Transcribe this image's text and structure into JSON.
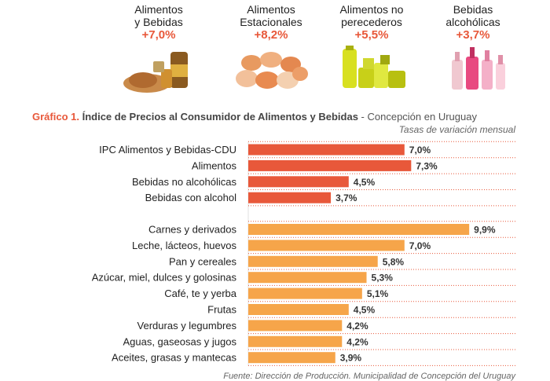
{
  "categories_header": [
    {
      "name": "Alimentos\ny Bebidas",
      "pct": "+7,0%",
      "icon": "food-basket-icon"
    },
    {
      "name": "Alimentos\nEstacionales",
      "pct": "+8,2%",
      "icon": "seasonal-produce-icon"
    },
    {
      "name": "Alimentos no\nperecederos",
      "pct": "+5,5%",
      "icon": "canned-goods-icon"
    },
    {
      "name": "Bebidas\nalcohólicas",
      "pct": "+3,7%",
      "icon": "liquor-bottles-icon"
    }
  ],
  "title": {
    "num": "Gráfico 1.",
    "main": "Índice de Precios al Consumidor de Alimentos y Bebidas",
    "sub": " - Concepción en Uruguay"
  },
  "subtitle": "Tasas de variación mensual",
  "source": "Fuente: Dirección de Producción. Municipalidad de Concepción del Uruguay",
  "colors": {
    "accent": "#e8583a",
    "group2": "#f6a54a",
    "dots": "#e8583a"
  },
  "chart_data": {
    "type": "bar",
    "orientation": "horizontal",
    "groups": [
      {
        "categories": [
          "IPC Alimentos y Bebidas-CDU",
          "Alimentos",
          "Bebidas no alcohólicas",
          "Bebidas con alcohol"
        ],
        "values": [
          7.0,
          7.3,
          4.5,
          3.7
        ],
        "labels": [
          "7,0%",
          "7,3%",
          "4,5%",
          "3,7%"
        ]
      },
      {
        "categories": [
          "Carnes y derivados",
          "Leche, lácteos, huevos",
          "Pan y cereales",
          "Azúcar, miel, dulces y golosinas",
          "Café, te y yerba",
          "Frutas",
          "Verduras y legumbres",
          "Aguas, gaseosas y jugos",
          "Aceites, grasas y mantecas"
        ],
        "values": [
          9.9,
          7.0,
          5.8,
          5.3,
          5.1,
          4.5,
          4.2,
          4.2,
          3.9
        ],
        "labels": [
          "9,9%",
          "7,0%",
          "5,8%",
          "5,3%",
          "5,1%",
          "4,5%",
          "4,2%",
          "4,2%",
          "3,9%"
        ]
      }
    ],
    "xlim": [
      0,
      10
    ]
  }
}
